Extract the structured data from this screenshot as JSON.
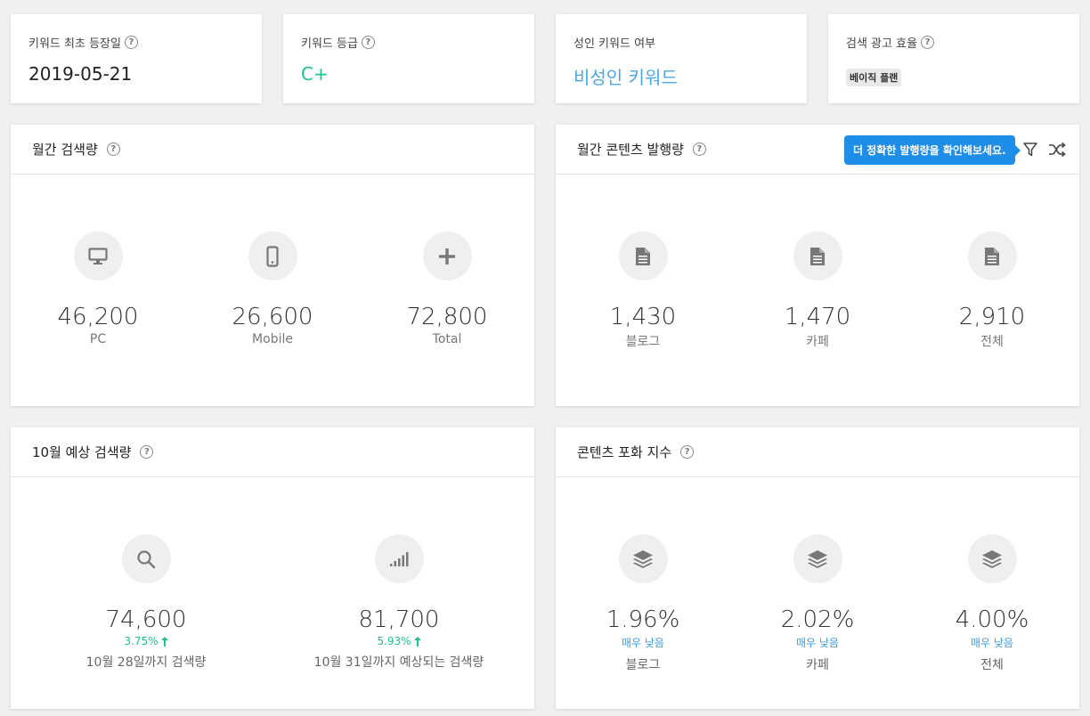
{
  "top_cards": {
    "first_seen": {
      "title": "키워드 최초 등장일",
      "value": "2019-05-21"
    },
    "grade": {
      "title": "키워드 등급",
      "value": "C+"
    },
    "adult": {
      "title": "성인 키워드 여부",
      "value": "비성인 키워드"
    },
    "ad_efficiency": {
      "title": "검색 광고 효율",
      "badge": "베이직 플랜"
    }
  },
  "monthly_search": {
    "title": "월간 검색량",
    "items": [
      {
        "icon": "monitor-icon",
        "value": "46,200",
        "label": "PC"
      },
      {
        "icon": "mobile-icon",
        "value": "26,600",
        "label": "Mobile"
      },
      {
        "icon": "plus-icon",
        "value": "72,800",
        "label": "Total"
      }
    ]
  },
  "monthly_content": {
    "title": "월간 콘텐츠 발행량",
    "tooltip": "더 정확한 발행량을 확인해보세요.",
    "items": [
      {
        "icon": "document-icon",
        "value": "1,430",
        "label": "블로그"
      },
      {
        "icon": "document-icon",
        "value": "1,470",
        "label": "카페"
      },
      {
        "icon": "document-icon",
        "value": "2,910",
        "label": "전체"
      }
    ]
  },
  "predicted_search": {
    "title": "10월 예상 검색량",
    "items": [
      {
        "icon": "search-icon",
        "value": "74,600",
        "change": "3.75%",
        "label": "10월 28일까지 검색량"
      },
      {
        "icon": "signal-icon",
        "value": "81,700",
        "change": "5.93%",
        "label": "10월 31일까지 예상되는 검색량"
      }
    ]
  },
  "saturation": {
    "title": "콘텐츠 포화 지수",
    "items": [
      {
        "icon": "layers-icon",
        "value": "1.96%",
        "rating": "매우 낮음",
        "label": "블로그"
      },
      {
        "icon": "layers-icon",
        "value": "2.02%",
        "rating": "매우 낮음",
        "label": "카페"
      },
      {
        "icon": "layers-icon",
        "value": "4.00%",
        "rating": "매우 낮음",
        "label": "전체"
      }
    ]
  },
  "colors": {
    "green": "#1cc48a",
    "blue": "#4aa8e8",
    "tooltip_blue": "#1e8ee8"
  }
}
